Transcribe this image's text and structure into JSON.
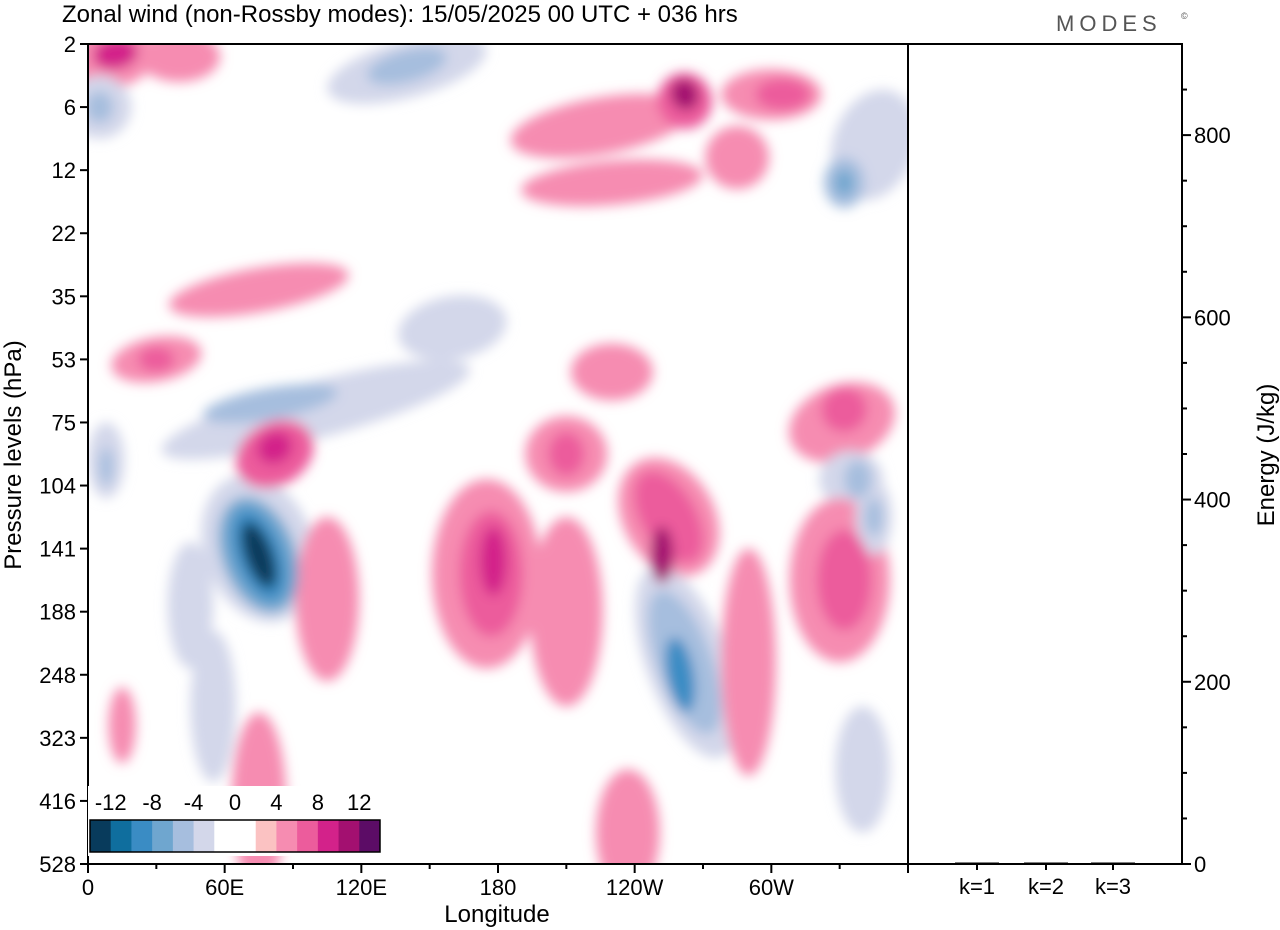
{
  "header": {
    "title": "Zonal wind (non-Rossby modes):  15/05/2025  00 UTC  + 036 hrs",
    "brand": "MODES",
    "brand_mark": "©"
  },
  "chart_data": [
    {
      "type": "heatmap",
      "title": "Zonal wind (non-Rossby modes):  15/05/2025  00 UTC  + 036 hrs",
      "xlabel": "Longitude",
      "ylabel": "Pressure levels (hPa)",
      "x_ticks": [
        "0",
        "60E",
        "120E",
        "180",
        "120W",
        "60W"
      ],
      "y_ticks": [
        "2",
        "6",
        "12",
        "22",
        "35",
        "53",
        "75",
        "104",
        "141",
        "188",
        "248",
        "323",
        "416",
        "528"
      ],
      "xlim": [
        0,
        360
      ],
      "colorbar": {
        "labels": [
          "-12",
          "-8",
          "-4",
          "0",
          "4",
          "8",
          "12"
        ],
        "colors": [
          "#083b5c",
          "#0f6e9e",
          "#3a8cc4",
          "#6fa6cf",
          "#a6bede",
          "#d3d7ea",
          "#ffffff",
          "#ffffff",
          "#fbc2c2",
          "#f68cb1",
          "#ec5c9c",
          "#d3228a",
          "#a31070",
          "#5c0c66"
        ]
      },
      "features": [
        {
          "kind": "negative",
          "level": -14,
          "lon": 78,
          "level_hpa": 141
        },
        {
          "kind": "negative",
          "level": -10,
          "lon": 258,
          "level_hpa": 230
        },
        {
          "kind": "positive",
          "level": 10,
          "lon": 253,
          "level_hpa": 141
        },
        {
          "kind": "positive",
          "level": 8,
          "lon": 176,
          "level_hpa": 141
        },
        {
          "kind": "positive",
          "level": 10,
          "lon": 261,
          "level_hpa": 6
        },
        {
          "kind": "positive",
          "level": 8,
          "lon": 12,
          "level_hpa": 2
        }
      ]
    },
    {
      "type": "bar",
      "categories": [
        "k=1",
        "k=2",
        "k=3"
      ],
      "values": [
        1,
        1,
        0.5
      ],
      "ylabel": "Energy (J/kg)",
      "ylim": [
        0,
        900
      ],
      "y_ticks": [
        0,
        200,
        400,
        600,
        800
      ]
    }
  ]
}
